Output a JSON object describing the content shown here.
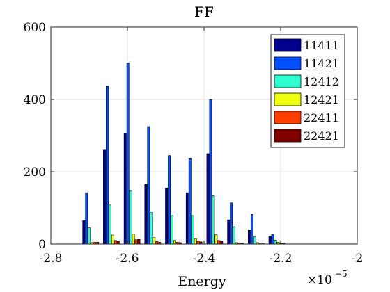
{
  "chart_data": {
    "type": "bar",
    "title": "FF",
    "xlabel": "Energy",
    "ylabel": "",
    "x_multiplier": {
      "base": "×10",
      "exponent": "−5"
    },
    "xlim": [
      -2.8,
      -2.0
    ],
    "ylim": [
      0,
      600
    ],
    "x_ticks": [
      "-2.8",
      "-2.6",
      "-2.4",
      "-2.2",
      "-2"
    ],
    "y_ticks": [
      "0",
      "200",
      "400",
      "600"
    ],
    "grid": true,
    "legend_position": "top-right",
    "categories": [
      -2.75,
      -2.696,
      -2.642,
      -2.588,
      -2.534,
      -2.48,
      -2.426,
      -2.372,
      -2.318,
      -2.264,
      -2.21,
      -2.156
    ],
    "series": [
      {
        "name": "11411",
        "color": "#00008F",
        "values": [
          0,
          65,
          260,
          305,
          165,
          155,
          142,
          250,
          67,
          38,
          22,
          0
        ]
      },
      {
        "name": "11421",
        "color": "#0050FF",
        "values": [
          0,
          142,
          436,
          501,
          325,
          245,
          238,
          400,
          114,
          82,
          27,
          0
        ]
      },
      {
        "name": "12412",
        "color": "#30FFD0",
        "values": [
          0,
          45,
          108,
          148,
          87,
          79,
          79,
          134,
          48,
          20,
          11,
          0
        ]
      },
      {
        "name": "12421",
        "color": "#EFFF10",
        "values": [
          0,
          4,
          25,
          28,
          18,
          10,
          15,
          26,
          4,
          4,
          5,
          0
        ]
      },
      {
        "name": "22411",
        "color": "#FF4000",
        "values": [
          0,
          5,
          10,
          12,
          7,
          5,
          8,
          10,
          2,
          1,
          2,
          0
        ]
      },
      {
        "name": "22421",
        "color": "#800000",
        "values": [
          0,
          5,
          8,
          13,
          5,
          4,
          6,
          8,
          2,
          1,
          2,
          0
        ]
      }
    ]
  }
}
